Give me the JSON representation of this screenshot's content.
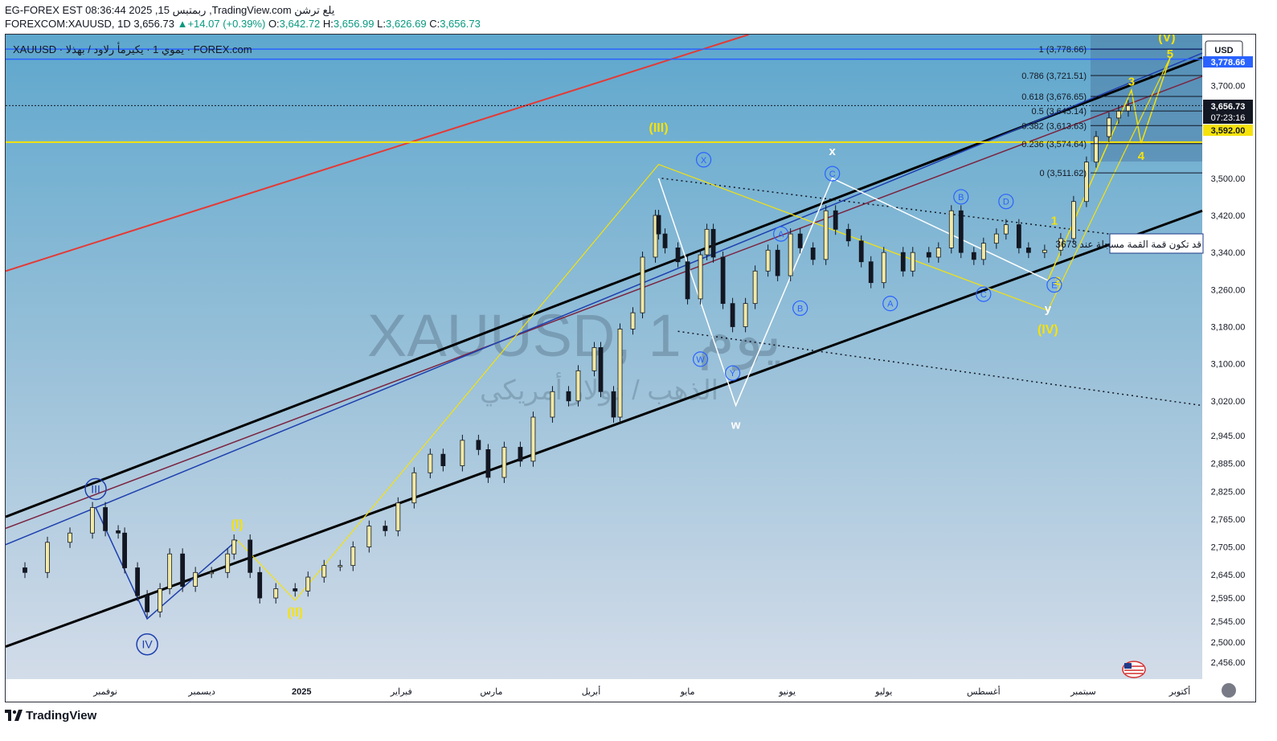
{
  "header": {
    "line1": "EG-FOREX EST 08:36:44 2025 ,15 ربمتبس ,TradingView.com يلع ترشن",
    "symbol_line": "FOREXCOM:XAUUSD, 1D 3,656.73",
    "change": "▲+14.07 (+0.39%)",
    "ohlc": [
      {
        "k": "O:",
        "v": "3,642.72"
      },
      {
        "k": "H:",
        "v": "3,656.99"
      },
      {
        "k": "L:",
        "v": "3,626.69"
      },
      {
        "k": "C:",
        "v": "3,656.73"
      }
    ]
  },
  "legend_label": "XAUUSD · يموي 1 · يكيرمأ رلاود / بهذلا · FOREX.com",
  "watermark": {
    "main": "XAUUSD, 1 يوم",
    "sub": "الذهب / دولار أمريكي"
  },
  "currency_button": "USD",
  "price_tags": {
    "top": "3,778.66",
    "last": "3,656.73",
    "countdown": "07:23:16",
    "yellow_line": "3,592.00"
  },
  "annotation": "قد تكون قمة القمة مسجلة عند 3673",
  "fib_levels": [
    {
      "ratio": "1",
      "price": "3,778.66",
      "label": "1 (3,778.66)"
    },
    {
      "ratio": "0.786",
      "price": "3,721.51",
      "label": "0.786 (3,721.51)"
    },
    {
      "ratio": "0.618",
      "price": "3,676.65",
      "label": "0.618 (3,676.65)"
    },
    {
      "ratio": "0.5",
      "price": "3,645.14",
      "label": "0.5 (3,645.14)"
    },
    {
      "ratio": "0.382",
      "price": "3,613.63",
      "label": "0.382 (3,613.63)"
    },
    {
      "ratio": "0.236",
      "price": "3,574.64",
      "label": "0.236 (3,574.64)"
    },
    {
      "ratio": "0",
      "price": "3,511.62",
      "label": "0 (3,511.62)"
    }
  ],
  "wave_labels": [
    {
      "text": "III",
      "x": "2024-10-29",
      "y": 2830
    },
    {
      "text": "IV",
      "x": "2024-11-14",
      "y": 2495
    },
    {
      "text": "(I)",
      "x": "2024-12-12",
      "y": 2745
    },
    {
      "text": "(II)",
      "x": "2024-12-30",
      "y": 2555
    },
    {
      "text": "(III)",
      "x": "2025-04-22",
      "y": 3600
    },
    {
      "text": "(IV)",
      "x": "2025-08-21",
      "y": 3165
    },
    {
      "text": "(V)",
      "x": "2025-09-27",
      "y": 3795
    },
    {
      "text": "3",
      "x": "2025-09-16",
      "y": 3700
    },
    {
      "text": "4",
      "x": "2025-09-19",
      "y": 3540
    },
    {
      "text": "5",
      "x": "2025-09-28",
      "y": 3760
    },
    {
      "text": "1",
      "x": "2025-08-23",
      "y": 3400
    },
    {
      "text": "2",
      "x": "2025-08-24",
      "y": 3270
    },
    {
      "text": "X",
      "x": "2025-05-06",
      "y": 3540
    },
    {
      "text": "W",
      "x": "2025-05-05",
      "y": 3110
    },
    {
      "text": "Y",
      "x": "2025-05-15",
      "y": 3080
    },
    {
      "text": "w",
      "x": "2025-05-16",
      "y": 2960
    },
    {
      "text": "x",
      "x": "2025-06-15",
      "y": 3550
    },
    {
      "text": "y",
      "x": "2025-08-21",
      "y": 3210
    },
    {
      "text": "A",
      "x": "2025-05-30",
      "y": 3380
    },
    {
      "text": "B",
      "x": "2025-06-05",
      "y": 3220
    },
    {
      "text": "C",
      "x": "2025-06-15",
      "y": 3510
    },
    {
      "text": "A",
      "x": "2025-07-03",
      "y": 3230
    },
    {
      "text": "B",
      "x": "2025-07-25",
      "y": 3460
    },
    {
      "text": "C",
      "x": "2025-08-01",
      "y": 3250
    },
    {
      "text": "D",
      "x": "2025-08-08",
      "y": 3450
    },
    {
      "text": "E",
      "x": "2025-08-23",
      "y": 3270
    }
  ],
  "chart_data": {
    "type": "candlestick",
    "symbol": "XAUUSD",
    "timeframe": "1D",
    "ylim": [
      2420,
      3810
    ],
    "y_ticks": [
      3700,
      3500,
      3420,
      3340,
      3260,
      3180,
      3100,
      3020,
      2945,
      2885,
      2825,
      2765,
      2705,
      2645,
      2595,
      2545,
      2500,
      2456
    ],
    "y_tick_labels": [
      "3,700.00",
      "3,500.00",
      "3,420.00",
      "3,340.00",
      "3,260.00",
      "3,180.00",
      "3,100.00",
      "3,020.00",
      "2,945.00",
      "2,885.00",
      "2,825.00",
      "2,765.00",
      "2,705.00",
      "2,645.00",
      "2,595.00",
      "2,545.00",
      "2,500.00",
      "2,456.00"
    ],
    "x_labels": [
      {
        "text": "نوفمبر",
        "date": "2024-11-01"
      },
      {
        "text": "ديسمبر",
        "date": "2024-12-01"
      },
      {
        "text": "2025",
        "date": "2025-01-01"
      },
      {
        "text": "فبراير",
        "date": "2025-02-01"
      },
      {
        "text": "مارس",
        "date": "2025-03-01"
      },
      {
        "text": "أبريل",
        "date": "2025-04-01"
      },
      {
        "text": "مايو",
        "date": "2025-05-01"
      },
      {
        "text": "يونيو",
        "date": "2025-06-01"
      },
      {
        "text": "يوليو",
        "date": "2025-07-01"
      },
      {
        "text": "أغسطس",
        "date": "2025-08-01"
      },
      {
        "text": "سبتمبر",
        "date": "2025-09-01"
      },
      {
        "text": "أكتوبر",
        "date": "2025-10-01"
      }
    ],
    "x_range": [
      "2024-10-01",
      "2025-10-08"
    ],
    "close_series": [
      [
        "2024-10-01",
        2660
      ],
      [
        "2024-10-07",
        2650
      ],
      [
        "2024-10-14",
        2715
      ],
      [
        "2024-10-21",
        2735
      ],
      [
        "2024-10-28",
        2790
      ],
      [
        "2024-11-01",
        2740
      ],
      [
        "2024-11-05",
        2735
      ],
      [
        "2024-11-07",
        2660
      ],
      [
        "2024-11-11",
        2600
      ],
      [
        "2024-11-14",
        2565
      ],
      [
        "2024-11-18",
        2615
      ],
      [
        "2024-11-21",
        2690
      ],
      [
        "2024-11-25",
        2620
      ],
      [
        "2024-11-29",
        2650
      ],
      [
        "2024-12-04",
        2650
      ],
      [
        "2024-12-09",
        2690
      ],
      [
        "2024-12-11",
        2720
      ],
      [
        "2024-12-16",
        2650
      ],
      [
        "2024-12-19",
        2595
      ],
      [
        "2024-12-24",
        2615
      ],
      [
        "2024-12-30",
        2610
      ],
      [
        "2025-01-03",
        2640
      ],
      [
        "2025-01-08",
        2665
      ],
      [
        "2025-01-13",
        2665
      ],
      [
        "2025-01-17",
        2705
      ],
      [
        "2025-01-22",
        2750
      ],
      [
        "2025-01-27",
        2740
      ],
      [
        "2025-01-31",
        2800
      ],
      [
        "2025-02-05",
        2865
      ],
      [
        "2025-02-10",
        2905
      ],
      [
        "2025-02-14",
        2880
      ],
      [
        "2025-02-20",
        2935
      ],
      [
        "2025-02-25",
        2915
      ],
      [
        "2025-02-28",
        2855
      ],
      [
        "2025-03-05",
        2920
      ],
      [
        "2025-03-10",
        2890
      ],
      [
        "2025-03-14",
        2985
      ],
      [
        "2025-03-20",
        3040
      ],
      [
        "2025-03-25",
        3020
      ],
      [
        "2025-03-28",
        3085
      ],
      [
        "2025-04-02",
        3135
      ],
      [
        "2025-04-04",
        3040
      ],
      [
        "2025-04-08",
        2985
      ],
      [
        "2025-04-10",
        3175
      ],
      [
        "2025-04-14",
        3210
      ],
      [
        "2025-04-17",
        3330
      ],
      [
        "2025-04-21",
        3420
      ],
      [
        "2025-04-22",
        3380
      ],
      [
        "2025-04-24",
        3350
      ],
      [
        "2025-04-28",
        3320
      ],
      [
        "2025-05-01",
        3240
      ],
      [
        "2025-05-05",
        3335
      ],
      [
        "2025-05-07",
        3390
      ],
      [
        "2025-05-09",
        3330
      ],
      [
        "2025-05-12",
        3230
      ],
      [
        "2025-05-15",
        3180
      ],
      [
        "2025-05-19",
        3230
      ],
      [
        "2025-05-22",
        3300
      ],
      [
        "2025-05-26",
        3345
      ],
      [
        "2025-05-29",
        3290
      ],
      [
        "2025-06-02",
        3380
      ],
      [
        "2025-06-05",
        3350
      ],
      [
        "2025-06-09",
        3325
      ],
      [
        "2025-06-13",
        3430
      ],
      [
        "2025-06-16",
        3390
      ],
      [
        "2025-06-20",
        3365
      ],
      [
        "2025-06-24",
        3320
      ],
      [
        "2025-06-27",
        3275
      ],
      [
        "2025-07-01",
        3340
      ],
      [
        "2025-07-07",
        3300
      ],
      [
        "2025-07-10",
        3340
      ],
      [
        "2025-07-15",
        3330
      ],
      [
        "2025-07-18",
        3350
      ],
      [
        "2025-07-22",
        3430
      ],
      [
        "2025-07-25",
        3340
      ],
      [
        "2025-07-29",
        3325
      ],
      [
        "2025-08-01",
        3360
      ],
      [
        "2025-08-05",
        3380
      ],
      [
        "2025-08-08",
        3400
      ],
      [
        "2025-08-12",
        3350
      ],
      [
        "2025-08-15",
        3340
      ],
      [
        "2025-08-20",
        3345
      ],
      [
        "2025-08-25",
        3370
      ],
      [
        "2025-08-29",
        3450
      ],
      [
        "2025-09-02",
        3535
      ],
      [
        "2025-09-05",
        3590
      ],
      [
        "2025-09-09",
        3630
      ],
      [
        "2025-09-12",
        3645
      ],
      [
        "2025-09-15",
        3656.73
      ]
    ]
  }
}
